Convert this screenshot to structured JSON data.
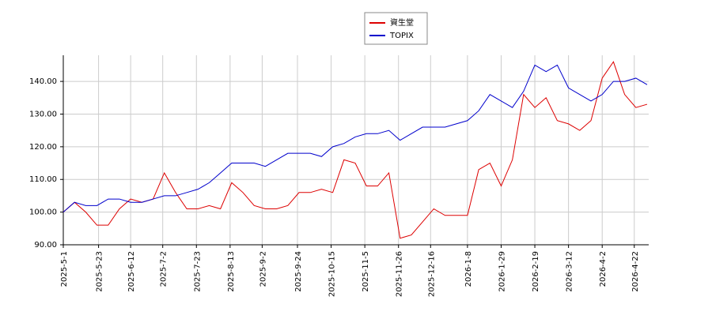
{
  "chart_data": {
    "type": "line",
    "x": [
      "2025-05-01",
      "2025-05-08",
      "2025-05-15",
      "2025-05-22",
      "2025-05-29",
      "2025-06-05",
      "2025-06-12",
      "2025-06-19",
      "2025-06-26",
      "2025-07-03",
      "2025-07-10",
      "2025-07-17",
      "2025-07-24",
      "2025-07-31",
      "2025-08-07",
      "2025-08-14",
      "2025-08-21",
      "2025-08-28",
      "2025-09-04",
      "2025-09-11",
      "2025-09-18",
      "2025-09-25",
      "2025-10-02",
      "2025-10-09",
      "2025-10-16",
      "2025-10-23",
      "2025-10-30",
      "2025-11-06",
      "2025-11-13",
      "2025-11-20",
      "2025-11-27",
      "2025-12-04",
      "2025-12-11",
      "2025-12-18",
      "2025-12-25",
      "2026-01-01",
      "2026-01-08",
      "2026-01-15",
      "2026-01-22",
      "2026-01-29",
      "2026-02-05",
      "2026-02-12",
      "2026-02-19",
      "2026-02-26",
      "2026-03-05",
      "2026-03-12",
      "2026-03-19",
      "2026-03-26",
      "2026-04-02",
      "2026-04-09",
      "2026-04-16",
      "2026-04-23",
      "2026-04-30"
    ],
    "series": [
      {
        "name": "資生堂",
        "color": "#dd0000",
        "values": [
          100,
          103,
          100,
          96,
          96,
          101,
          104,
          103,
          104,
          112,
          106,
          101,
          101,
          102,
          101,
          109,
          106,
          102,
          101,
          101,
          102,
          106,
          106,
          107,
          106,
          116,
          115,
          108,
          108,
          112,
          92,
          93,
          97,
          101,
          99,
          99,
          99,
          113,
          115,
          108,
          116,
          136,
          132,
          135,
          128,
          127,
          125,
          128,
          141,
          146,
          136,
          132,
          133
        ]
      },
      {
        "name": "TOPIX",
        "color": "#0000cc",
        "values": [
          100,
          103,
          102,
          102,
          104,
          104,
          103,
          103,
          104,
          105,
          105,
          106,
          107,
          109,
          112,
          115,
          115,
          115,
          114,
          116,
          118,
          118,
          118,
          117,
          120,
          121,
          123,
          124,
          124,
          125,
          122,
          124,
          126,
          126,
          126,
          127,
          128,
          131,
          136,
          134,
          132,
          137,
          145,
          143,
          145,
          138,
          136,
          134,
          136,
          140,
          140,
          141,
          139
        ]
      }
    ],
    "xlim": [
      "2025-05-01",
      "2026-05-01"
    ],
    "xticks": [
      {
        "value": "2025-05-01",
        "label": "2025-5-1"
      },
      {
        "value": "2025-05-23",
        "label": "2025-5-23"
      },
      {
        "value": "2025-06-12",
        "label": "2025-6-12"
      },
      {
        "value": "2025-07-02",
        "label": "2025-7-2"
      },
      {
        "value": "2025-07-23",
        "label": "2025-7-23"
      },
      {
        "value": "2025-08-13",
        "label": "2025-8-13"
      },
      {
        "value": "2025-09-02",
        "label": "2025-9-2"
      },
      {
        "value": "2025-09-24",
        "label": "2025-9-24"
      },
      {
        "value": "2025-10-15",
        "label": "2025-10-15"
      },
      {
        "value": "2025-11-05",
        "label": "2025-11-5"
      },
      {
        "value": "2025-11-26",
        "label": "2025-11-26"
      },
      {
        "value": "2025-12-16",
        "label": "2025-12-16"
      },
      {
        "value": "2026-01-08",
        "label": "2026-1-8"
      },
      {
        "value": "2026-01-29",
        "label": "2026-1-29"
      },
      {
        "value": "2026-02-19",
        "label": "2026-2-19"
      },
      {
        "value": "2026-03-12",
        "label": "2026-3-12"
      },
      {
        "value": "2026-04-02",
        "label": "2026-4-2"
      },
      {
        "value": "2026-04-22",
        "label": "2026-4-22"
      }
    ],
    "ylim": [
      90,
      148
    ],
    "yticks": [
      {
        "value": 90,
        "label": "90.00"
      },
      {
        "value": 100,
        "label": "100.00"
      },
      {
        "value": 110,
        "label": "110.00"
      },
      {
        "value": 120,
        "label": "120.00"
      },
      {
        "value": 130,
        "label": "130.00"
      },
      {
        "value": 140,
        "label": "140.00"
      }
    ],
    "grid": true,
    "legend": "top"
  }
}
